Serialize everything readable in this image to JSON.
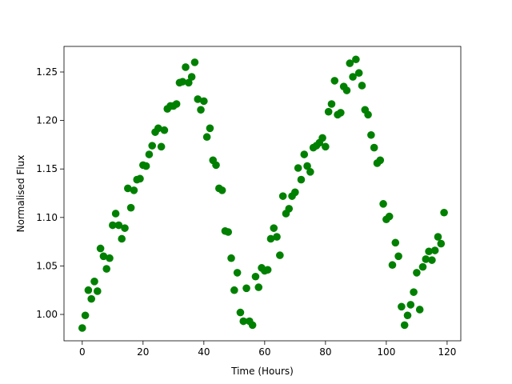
{
  "chart_data": {
    "type": "scatter",
    "x_label": "Time (Hours)",
    "y_label": "Normalised Flux",
    "color": "#008000",
    "x": [
      0,
      1,
      2,
      3,
      4,
      5,
      6,
      7,
      8,
      9,
      10,
      11,
      12,
      13,
      14,
      15,
      16,
      17,
      18,
      19,
      20,
      21,
      22,
      23,
      24,
      25,
      26,
      27,
      28,
      29,
      30,
      31,
      32,
      33,
      34,
      35,
      36,
      37,
      38,
      39,
      40,
      41,
      42,
      43,
      44,
      45,
      46,
      47,
      48,
      49,
      50,
      51,
      52,
      53,
      54,
      55,
      56,
      57,
      58,
      59,
      60,
      61,
      62,
      63,
      64,
      65,
      66,
      67,
      68,
      69,
      70,
      71,
      72,
      73,
      74,
      75,
      76,
      77,
      78,
      79,
      80,
      81,
      82,
      83,
      84,
      85,
      86,
      87,
      88,
      89,
      90,
      91,
      92,
      93,
      94,
      95,
      96,
      97,
      98,
      99,
      100,
      101,
      102,
      103,
      104,
      105,
      106,
      107,
      108,
      109,
      110,
      111,
      112,
      113,
      114,
      115,
      116,
      117,
      118,
      119
    ],
    "values": [
      0.986,
      0.999,
      1.025,
      1.016,
      1.034,
      1.024,
      1.068,
      1.06,
      1.047,
      1.058,
      1.092,
      1.104,
      1.092,
      1.078,
      1.089,
      1.13,
      1.11,
      1.128,
      1.139,
      1.14,
      1.154,
      1.153,
      1.165,
      1.174,
      1.188,
      1.192,
      1.173,
      1.19,
      1.212,
      1.215,
      1.215,
      1.217,
      1.239,
      1.24,
      1.255,
      1.239,
      1.245,
      1.26,
      1.222,
      1.211,
      1.22,
      1.183,
      1.192,
      1.159,
      1.154,
      1.13,
      1.128,
      1.086,
      1.085,
      1.058,
      1.025,
      1.043,
      1.002,
      0.993,
      1.027,
      0.993,
      0.989,
      1.039,
      1.028,
      1.048,
      1.045,
      1.046,
      1.078,
      1.089,
      1.08,
      1.061,
      1.122,
      1.104,
      1.109,
      1.122,
      1.126,
      1.151,
      1.139,
      1.165,
      1.153,
      1.147,
      1.172,
      1.174,
      1.177,
      1.182,
      1.173,
      1.209,
      1.217,
      1.241,
      1.206,
      1.208,
      1.235,
      1.231,
      1.259,
      1.245,
      1.263,
      1.249,
      1.236,
      1.211,
      1.206,
      1.185,
      1.172,
      1.156,
      1.159,
      1.114,
      1.098,
      1.101,
      1.051,
      1.074,
      1.06,
      1.008,
      0.989,
      0.999,
      1.01,
      1.023,
      1.043,
      1.005,
      1.049,
      1.057,
      1.065,
      1.056,
      1.066,
      1.08,
      1.073,
      1.105
    ],
    "xlim": [
      -6,
      124.5
    ],
    "ylim": [
      0.9728,
      1.2764
    ],
    "xticks": [
      0,
      20,
      40,
      60,
      80,
      100,
      120
    ],
    "yticks": [
      {
        "value": 1.0,
        "label": "1.00"
      },
      {
        "value": 1.05,
        "label": "1.05"
      },
      {
        "value": 1.1,
        "label": "1.10"
      },
      {
        "value": 1.15,
        "label": "1.15"
      },
      {
        "value": 1.2,
        "label": "1.20"
      },
      {
        "value": 1.25,
        "label": "1.25"
      }
    ]
  }
}
